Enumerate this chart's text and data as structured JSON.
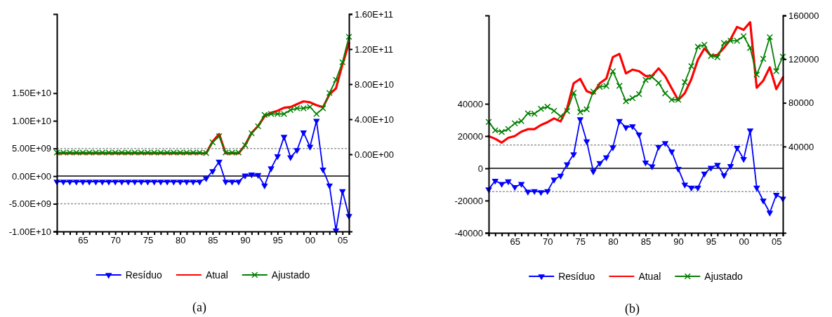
{
  "chart_data": [
    {
      "type": "line",
      "annotations": [
        "(a)"
      ],
      "legend": "bottom",
      "grid": false,
      "x": [
        1961,
        1962,
        1963,
        1964,
        1965,
        1966,
        1967,
        1968,
        1969,
        1970,
        1971,
        1972,
        1973,
        1974,
        1975,
        1976,
        1977,
        1978,
        1979,
        1980,
        1981,
        1982,
        1983,
        1984,
        1985,
        1986,
        1987,
        1988,
        1989,
        1990,
        1991,
        1992,
        1993,
        1994,
        1995,
        1996,
        1997,
        1998,
        1999,
        2000,
        2001,
        2002,
        2003,
        2004,
        2005,
        2006
      ],
      "xlim": [
        1961,
        2006
      ],
      "xticks": [
        {
          "value": 1961,
          "label": null
        },
        {
          "value": 1962,
          "label": null
        },
        {
          "value": 1963,
          "label": null
        },
        {
          "value": 1964,
          "label": null
        },
        {
          "value": 1965,
          "label": "65"
        },
        {
          "value": 1966,
          "label": null
        },
        {
          "value": 1967,
          "label": null
        },
        {
          "value": 1968,
          "label": null
        },
        {
          "value": 1969,
          "label": null
        },
        {
          "value": 1970,
          "label": "70"
        },
        {
          "value": 1971,
          "label": null
        },
        {
          "value": 1972,
          "label": null
        },
        {
          "value": 1973,
          "label": null
        },
        {
          "value": 1974,
          "label": null
        },
        {
          "value": 1975,
          "label": "75"
        },
        {
          "value": 1976,
          "label": null
        },
        {
          "value": 1977,
          "label": null
        },
        {
          "value": 1978,
          "label": null
        },
        {
          "value": 1979,
          "label": null
        },
        {
          "value": 1980,
          "label": "80"
        },
        {
          "value": 1981,
          "label": null
        },
        {
          "value": 1982,
          "label": null
        },
        {
          "value": 1983,
          "label": null
        },
        {
          "value": 1984,
          "label": null
        },
        {
          "value": 1985,
          "label": "85"
        },
        {
          "value": 1986,
          "label": null
        },
        {
          "value": 1987,
          "label": null
        },
        {
          "value": 1988,
          "label": null
        },
        {
          "value": 1989,
          "label": null
        },
        {
          "value": 1990,
          "label": "90"
        },
        {
          "value": 1991,
          "label": null
        },
        {
          "value": 1992,
          "label": null
        },
        {
          "value": 1993,
          "label": null
        },
        {
          "value": 1994,
          "label": null
        },
        {
          "value": 1995,
          "label": "95"
        },
        {
          "value": 1996,
          "label": null
        },
        {
          "value": 1997,
          "label": null
        },
        {
          "value": 1998,
          "label": null
        },
        {
          "value": 1999,
          "label": null
        },
        {
          "value": 2000,
          "label": "00"
        },
        {
          "value": 2001,
          "label": null
        },
        {
          "value": 2002,
          "label": null
        },
        {
          "value": 2003,
          "label": null
        },
        {
          "value": 2004,
          "label": null
        },
        {
          "value": 2005,
          "label": "05"
        },
        {
          "value": 2006,
          "label": null
        }
      ],
      "ylim": [
        -10000000000.0,
        29300000000.0
      ],
      "yticks": [
        {
          "value": -10000000000.0,
          "label": "-1.00E+10"
        },
        {
          "value": -5000000000.0,
          "label": "-5.00E+09"
        },
        {
          "value": 0,
          "label": "0.00E+00"
        },
        {
          "value": 5000000000.0,
          "label": "5.00E+09"
        },
        {
          "value": 10000000000.0,
          "label": "1.00E+10"
        },
        {
          "value": 15000000000.0,
          "label": "1.50E+10"
        }
      ],
      "y2lim": [
        -88000000000.0,
        160000000000.0
      ],
      "y2ticks": [
        {
          "value": 0,
          "label": "0.00E+00"
        },
        {
          "value": 40000000000.0,
          "label": "4.00E+10"
        },
        {
          "value": 80000000000.0,
          "label": "8.00E+10"
        },
        {
          "value": 120000000000.0,
          "label": "1.20E+11"
        },
        {
          "value": 160000000000.0,
          "label": "1.60E+11"
        }
      ],
      "ref_lines": [
        {
          "axis": "y",
          "value": 0,
          "color": "#000000",
          "line_style": "solid"
        },
        {
          "axis": "y",
          "value": 5000000000.0,
          "color": "#999999",
          "line_style": "dashed"
        },
        {
          "axis": "y",
          "value": -5000000000.0,
          "color": "#999999",
          "line_style": "dashed"
        }
      ],
      "series": [
        {
          "name": "Resíduo",
          "color": "#0000ff",
          "marker": "triangle",
          "values": [
            -1000000000.0,
            -1000000000.0,
            -1000000000.0,
            -1000000000.0,
            -1000000000.0,
            -1000000000.0,
            -1000000000.0,
            -1000000000.0,
            -1000000000.0,
            -1000000000.0,
            -1000000000.0,
            -1000000000.0,
            -1000000000.0,
            -1000000000.0,
            -1000000000.0,
            -1000000000.0,
            -1000000000.0,
            -1000000000.0,
            -1000000000.0,
            -1000000000.0,
            -1000000000.0,
            -1000000000.0,
            -1000000000.0,
            -400000000.0,
            900000000.0,
            2600000000.0,
            -1000000000.0,
            -1000000000.0,
            -1000000000.0,
            100000000.0,
            300000000.0,
            200000000.0,
            -1700000000.0,
            1400000000.0,
            3600000000.0,
            7100000000.0,
            3400000000.0,
            4700000000.0,
            7900000000.0,
            5300000000.0,
            10000000000.0,
            1200000000.0,
            -1700000000.0,
            -9800000000.0,
            -2700000000.0,
            -7200000000.0
          ]
        },
        {
          "name": "Atual",
          "color": "#ff0000",
          "marker": "none",
          "axis": "y2",
          "values": [
            1000000000.0,
            1000000000.0,
            1000000000.0,
            1000000000.0,
            1000000000.0,
            1000000000.0,
            1000000000.0,
            1000000000.0,
            1000000000.0,
            1000000000.0,
            1000000000.0,
            1000000000.0,
            1000000000.0,
            1000000000.0,
            1000000000.0,
            1000000000.0,
            1000000000.0,
            1000000000.0,
            1000000000.0,
            1000000000.0,
            1000000000.0,
            1000000000.0,
            1000000000.0,
            1100000000.0,
            14500000000.0,
            23100000000.0,
            1000000000.0,
            1000000000.0,
            1000000000.0,
            10500000000.0,
            24300000000.0,
            32200000000.0,
            43300000000.0,
            47400000000.0,
            49600000000.0,
            53100000000.0,
            53900000000.0,
            57200000000.0,
            60400000000.0,
            59300000000.0,
            56000000000.0,
            53700000000.0,
            68300000000.0,
            75200000000.0,
            102300000000.0,
            126800000000.0
          ]
        },
        {
          "name": "Ajustado",
          "color": "#008000",
          "marker": "cross",
          "axis": "y2",
          "values": [
            2000000000.0,
            2000000000.0,
            2000000000.0,
            2000000000.0,
            2000000000.0,
            2000000000.0,
            2000000000.0,
            2000000000.0,
            2000000000.0,
            2000000000.0,
            2000000000.0,
            2000000000.0,
            2000000000.0,
            2000000000.0,
            2000000000.0,
            2000000000.0,
            2000000000.0,
            2000000000.0,
            2000000000.0,
            2000000000.0,
            2000000000.0,
            2000000000.0,
            2000000000.0,
            1500000000.0,
            13600000000.0,
            20500000000.0,
            2000000000.0,
            2000000000.0,
            2000000000.0,
            10400000000.0,
            24000000000.0,
            32000000000.0,
            45000000000.0,
            46000000000.0,
            46000000000.0,
            46000000000.0,
            50500000000.0,
            52500000000.0,
            52500000000.0,
            54000000000.0,
            46000000000.0,
            52500000000.0,
            70000000000.0,
            85000000000.0,
            105000000000.0,
            134000000000.0
          ]
        }
      ]
    },
    {
      "type": "line",
      "annotations": [
        "(b)"
      ],
      "legend": "bottom",
      "grid": false,
      "x": [
        1961,
        1962,
        1963,
        1964,
        1965,
        1966,
        1967,
        1968,
        1969,
        1970,
        1971,
        1972,
        1973,
        1974,
        1975,
        1976,
        1977,
        1978,
        1979,
        1980,
        1981,
        1982,
        1983,
        1984,
        1985,
        1986,
        1987,
        1988,
        1989,
        1990,
        1991,
        1992,
        1993,
        1994,
        1995,
        1996,
        1997,
        1998,
        1999,
        2000,
        2001,
        2002,
        2003,
        2004,
        2005,
        2006
      ],
      "xlim": [
        1961,
        2006
      ],
      "xticks": [
        {
          "value": 1961,
          "label": null
        },
        {
          "value": 1962,
          "label": null
        },
        {
          "value": 1963,
          "label": null
        },
        {
          "value": 1964,
          "label": null
        },
        {
          "value": 1965,
          "label": "65"
        },
        {
          "value": 1966,
          "label": null
        },
        {
          "value": 1967,
          "label": null
        },
        {
          "value": 1968,
          "label": null
        },
        {
          "value": 1969,
          "label": null
        },
        {
          "value": 1970,
          "label": "70"
        },
        {
          "value": 1971,
          "label": null
        },
        {
          "value": 1972,
          "label": null
        },
        {
          "value": 1973,
          "label": null
        },
        {
          "value": 1974,
          "label": null
        },
        {
          "value": 1975,
          "label": "75"
        },
        {
          "value": 1976,
          "label": null
        },
        {
          "value": 1977,
          "label": null
        },
        {
          "value": 1978,
          "label": null
        },
        {
          "value": 1979,
          "label": null
        },
        {
          "value": 1980,
          "label": "80"
        },
        {
          "value": 1981,
          "label": null
        },
        {
          "value": 1982,
          "label": null
        },
        {
          "value": 1983,
          "label": null
        },
        {
          "value": 1984,
          "label": null
        },
        {
          "value": 1985,
          "label": "85"
        },
        {
          "value": 1986,
          "label": null
        },
        {
          "value": 1987,
          "label": null
        },
        {
          "value": 1988,
          "label": null
        },
        {
          "value": 1989,
          "label": null
        },
        {
          "value": 1990,
          "label": "90"
        },
        {
          "value": 1991,
          "label": null
        },
        {
          "value": 1992,
          "label": null
        },
        {
          "value": 1993,
          "label": null
        },
        {
          "value": 1994,
          "label": null
        },
        {
          "value": 1995,
          "label": "95"
        },
        {
          "value": 1996,
          "label": null
        },
        {
          "value": 1997,
          "label": null
        },
        {
          "value": 1998,
          "label": null
        },
        {
          "value": 1999,
          "label": null
        },
        {
          "value": 2000,
          "label": "00"
        },
        {
          "value": 2001,
          "label": null
        },
        {
          "value": 2002,
          "label": null
        },
        {
          "value": 2003,
          "label": null
        },
        {
          "value": 2004,
          "label": null
        },
        {
          "value": 2005,
          "label": "05"
        },
        {
          "value": 2006,
          "label": null
        }
      ],
      "ylim": [
        -40000,
        94800
      ],
      "yticks": [
        -40000,
        -20000,
        0,
        20000,
        40000
      ],
      "y2lim": [
        -39000,
        160000
      ],
      "y2ticks": [
        40000,
        80000,
        120000,
        160000
      ],
      "ref_lines": [
        {
          "axis": "y",
          "value": 0,
          "color": "#000000",
          "line_style": "solid"
        },
        {
          "axis": "y",
          "value": 14500,
          "color": "#999999",
          "line_style": "dashed"
        },
        {
          "axis": "y",
          "value": -14500,
          "color": "#999999",
          "line_style": "dashed"
        }
      ],
      "series": [
        {
          "name": "Resíduo",
          "color": "#0000ff",
          "marker": "triangle",
          "values": [
            -13000,
            -7700,
            -9700,
            -8100,
            -11600,
            -9700,
            -14500,
            -14100,
            -14800,
            -14100,
            -7000,
            -4600,
            2500,
            8700,
            30400,
            16700,
            -1900,
            3300,
            6800,
            13000,
            29300,
            25400,
            26100,
            21000,
            3600,
            1200,
            13300,
            15700,
            10400,
            -300,
            -10100,
            -12000,
            -12000,
            -3300,
            300,
            2200,
            -4300,
            1400,
            12700,
            5800,
            23500,
            -12000,
            -20000,
            -27500,
            -16400,
            -18800
          ]
        },
        {
          "name": "Atual",
          "color": "#ff0000",
          "marker": "none",
          "axis": "y2",
          "values": [
            49500,
            47100,
            43600,
            48000,
            49600,
            53600,
            55900,
            55900,
            59700,
            62300,
            65700,
            63000,
            75000,
            97900,
            101900,
            90700,
            88400,
            97900,
            102200,
            121900,
            124800,
            106900,
            110400,
            109000,
            104600,
            104800,
            111500,
            104300,
            93200,
            82500,
            88800,
            101600,
            119400,
            129800,
            123100,
            123900,
            130400,
            138200,
            149500,
            146800,
            153800,
            93800,
            100300,
            112600,
            92600,
            103400
          ]
        },
        {
          "name": "Ajustado",
          "color": "#008000",
          "marker": "cross",
          "axis": "y2",
          "values": [
            62500,
            54800,
            53300,
            56100,
            61200,
            63300,
            70400,
            70000,
            74500,
            76400,
            72700,
            67600,
            72500,
            89200,
            71500,
            74000,
            90300,
            94600,
            95400,
            108900,
            95500,
            81500,
            84300,
            88000,
            101000,
            103600,
            98200,
            88600,
            82800,
            82800,
            98900,
            113600,
            131400,
            133100,
            122800,
            121700,
            134700,
            136800,
            136800,
            141000,
            130300,
            105800,
            120300,
            140100,
            109000,
            122200
          ]
        }
      ]
    }
  ]
}
